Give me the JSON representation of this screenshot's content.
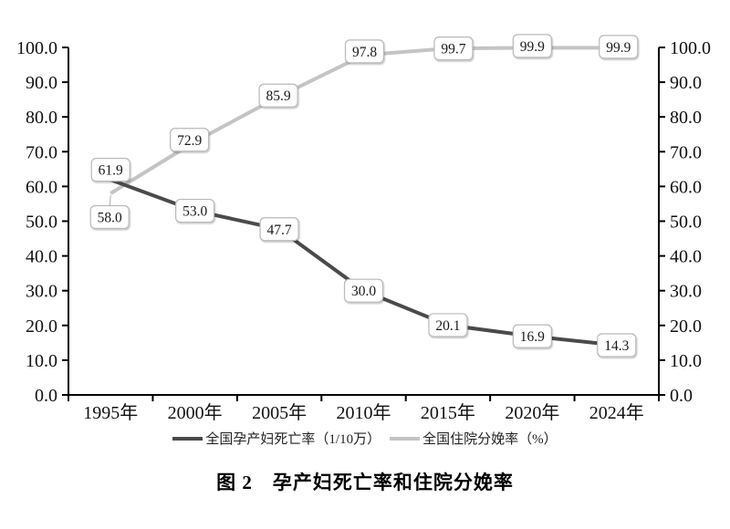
{
  "figure": {
    "caption": "图 2　孕产妇死亡率和住院分娩率"
  },
  "chart_data": {
    "type": "line",
    "title": "图 2　孕产妇死亡率和住院分娩率",
    "categories": [
      "1995年",
      "2000年",
      "2005年",
      "2010年",
      "2015年",
      "2020年",
      "2024年"
    ],
    "series": [
      {
        "name": "全国孕产妇死亡率（1/10万）",
        "values": [
          61.9,
          53.0,
          47.7,
          30.0,
          20.1,
          16.9,
          14.3
        ],
        "color": "#4a4a4a"
      },
      {
        "name": "全国住院分娩率（%）",
        "values": [
          58.0,
          72.9,
          85.9,
          97.8,
          99.7,
          99.9,
          99.9
        ],
        "color": "#c4c4c4"
      }
    ],
    "y_axis": {
      "min": 0,
      "max": 100,
      "step": 10,
      "ticks": [
        "0.0",
        "10.0",
        "20.0",
        "30.0",
        "40.0",
        "50.0",
        "60.0",
        "70.0",
        "80.0",
        "90.0",
        "100.0"
      ],
      "sides": [
        "left",
        "right"
      ]
    },
    "colors": {
      "axis": "#000000",
      "label_box_fill": "#ffffff",
      "label_box_border": "#b9b9b9",
      "text": "#111111"
    },
    "data_labels": true,
    "legend_position": "bottom",
    "grid": false
  }
}
